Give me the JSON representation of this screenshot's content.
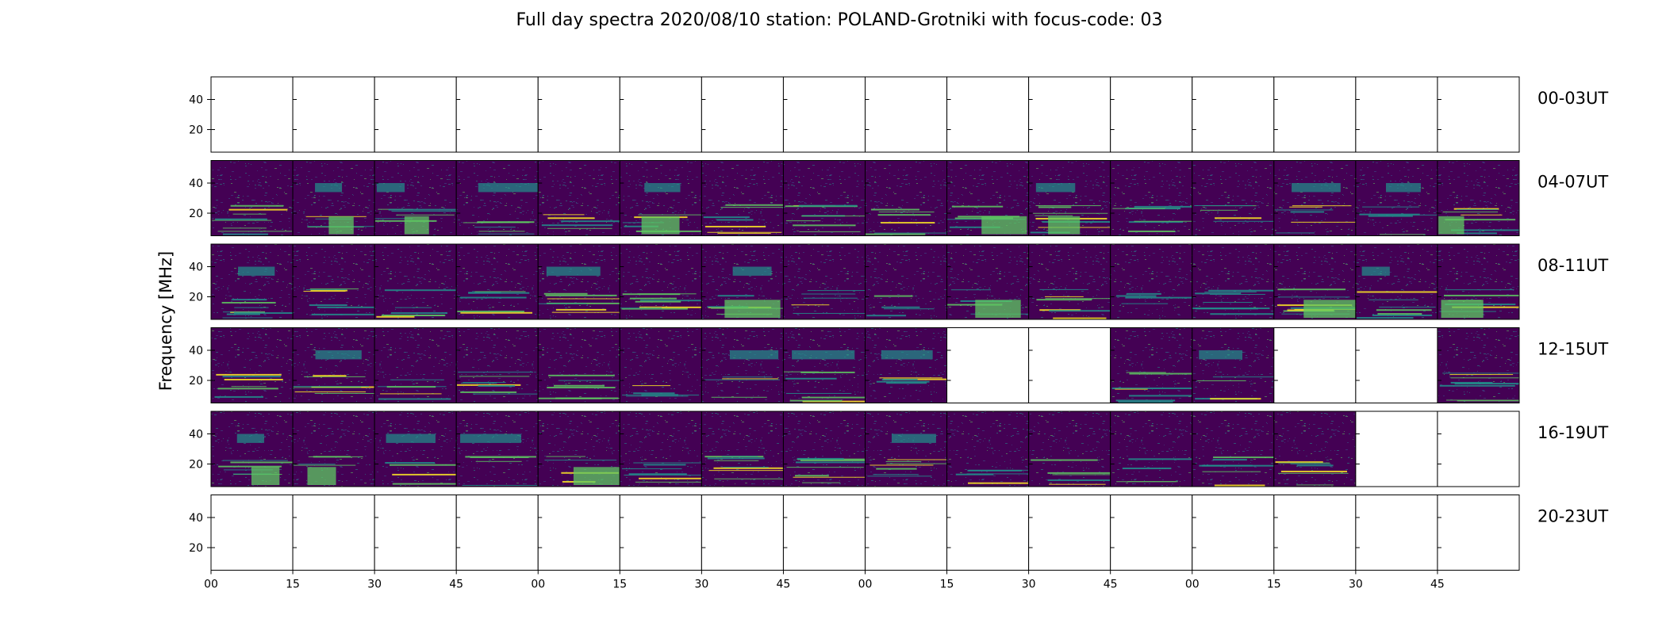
{
  "chart_data": {
    "type": "heatmap",
    "title": "Full day spectra 2020/08/10 station: POLAND-Grotniki with focus-code: 03",
    "ylabel": "Frequency [MHz]",
    "xlabel": "",
    "ylim": [
      5,
      55
    ],
    "y_ticks": [
      20,
      40
    ],
    "x_tick_labels": [
      "00",
      "15",
      "30",
      "45",
      "00",
      "15",
      "30",
      "45",
      "00",
      "15",
      "30",
      "45",
      "00",
      "15",
      "30",
      "45"
    ],
    "segments_per_row": 16,
    "colormap": [
      "#440154",
      "#3b528b",
      "#21918c",
      "#5ec962",
      "#fde725"
    ],
    "rows": [
      {
        "label": "00-03UT",
        "data_present": [
          0,
          0,
          0,
          0,
          0,
          0,
          0,
          0,
          0,
          0,
          0,
          0,
          0,
          0,
          0,
          0
        ]
      },
      {
        "label": "04-07UT",
        "data_present": [
          1,
          1,
          1,
          1,
          1,
          1,
          1,
          1,
          1,
          1,
          1,
          1,
          1,
          1,
          1,
          1
        ]
      },
      {
        "label": "08-11UT",
        "data_present": [
          1,
          1,
          1,
          1,
          1,
          1,
          1,
          1,
          1,
          1,
          1,
          1,
          1,
          1,
          1,
          1
        ]
      },
      {
        "label": "12-15UT",
        "data_present": [
          1,
          1,
          1,
          1,
          1,
          1,
          1,
          1,
          1,
          0,
          0,
          1,
          1,
          0,
          0,
          1
        ]
      },
      {
        "label": "16-19UT",
        "data_present": [
          1,
          1,
          1,
          1,
          1,
          1,
          1,
          1,
          1,
          1,
          1,
          1,
          1,
          1,
          0,
          0
        ]
      },
      {
        "label": "20-23UT",
        "data_present": [
          0,
          0,
          0,
          0,
          0,
          0,
          0,
          0,
          0,
          0,
          0,
          0,
          0,
          0,
          0,
          0
        ]
      }
    ]
  }
}
